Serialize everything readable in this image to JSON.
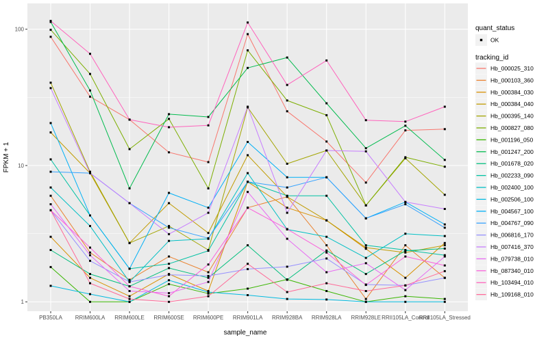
{
  "figure": {
    "background": "#FFFFFF",
    "panel_background": "#EBEBEB",
    "grid_color": "#FFFFFF",
    "tick_label_color": "#4D4D4D",
    "point_color": "#000000",
    "legend_key_fill": "#F2F2F2"
  },
  "legend": {
    "quant_status_title": "quant_status",
    "quant_status_items": [
      {
        "label": "OK",
        "shape": "black-point"
      }
    ],
    "tracking_id_title": "tracking_id"
  },
  "chart_data": {
    "type": "line",
    "title": "",
    "xlabel": "sample_name",
    "ylabel": "FPKM + 1",
    "y_scale": "log10",
    "y_ticks": [
      1,
      10,
      100
    ],
    "y_minor_gridlines": [
      3.162,
      31.62
    ],
    "ylim": [
      0.85,
      150
    ],
    "grid": "on",
    "legend_position": "right",
    "point_shape": "small-black-square",
    "categories": [
      "PB350LA",
      "RRIM600LA",
      "RRIM600LE",
      "RRIM600SE",
      "RRIM600PE",
      "RRIM901LA",
      "RRIM928BA",
      "RRIM928LA",
      "RRIM928LE",
      "RRII105LA_Control",
      "RRII105LA_Stressed"
    ],
    "series": [
      {
        "name": "Hb_000025_310",
        "color": "#F8766D",
        "values": [
          88,
          32,
          21.7,
          12.5,
          10.6,
          92,
          25,
          15,
          7.5,
          18.1,
          18.5
        ]
      },
      {
        "name": "Hb_000103_360",
        "color": "#EA8331",
        "values": [
          6.0,
          2.3,
          1.45,
          2.15,
          1.65,
          4.9,
          5.9,
          2.6,
          1.05,
          2.6,
          1.5
        ]
      },
      {
        "name": "Hb_000384_030",
        "color": "#D89000",
        "values": [
          3.0,
          1.5,
          1.1,
          1.6,
          1.2,
          7.6,
          4.9,
          3.96,
          2.45,
          1.5,
          2.7
        ]
      },
      {
        "name": "Hb_000384_040",
        "color": "#C09B00",
        "values": [
          17.5,
          8.8,
          2.7,
          5.3,
          3.2,
          11.9,
          5.9,
          3.96,
          2.5,
          2.3,
          2.6
        ]
      },
      {
        "name": "Hb_000395_140",
        "color": "#A3A500",
        "values": [
          40.5,
          9.0,
          2.7,
          3.6,
          2.4,
          26.7,
          10.3,
          12.9,
          5.1,
          11.3,
          6.1
        ]
      },
      {
        "name": "Hb_000827_080",
        "color": "#7CAE00",
        "values": [
          99,
          47,
          13.2,
          22,
          6.8,
          70,
          30,
          23.4,
          5.1,
          11.5,
          9.8
        ]
      },
      {
        "name": "Hb_001196_050",
        "color": "#39B600",
        "values": [
          1.8,
          1.0,
          1.0,
          1.35,
          1.15,
          1.25,
          1.46,
          1.2,
          1.0,
          1.1,
          1.05
        ]
      },
      {
        "name": "Hb_001247_200",
        "color": "#00BB4E",
        "values": [
          113,
          35.5,
          6.8,
          23.8,
          22.7,
          52,
          62,
          28.6,
          13.4,
          19.6,
          11.0
        ]
      },
      {
        "name": "Hb_001678_020",
        "color": "#00BF7D",
        "values": [
          2.4,
          1.6,
          1.3,
          1.77,
          1.5,
          2.6,
          1.45,
          2.38,
          1.6,
          2.37,
          2.46
        ]
      },
      {
        "name": "Hb_002233_090",
        "color": "#00C1A3",
        "values": [
          11.1,
          4.3,
          1.75,
          1.9,
          2.37,
          7.6,
          6.0,
          6.0,
          2.6,
          2.4,
          2.2
        ]
      },
      {
        "name": "Hb_002400_100",
        "color": "#00BFC4",
        "values": [
          6.9,
          3.6,
          1.4,
          2.8,
          2.9,
          8.8,
          3.4,
          3.0,
          2.1,
          3.16,
          3.04
        ]
      },
      {
        "name": "Hb_002506_100",
        "color": "#00BAE0",
        "values": [
          1.31,
          1.14,
          1.0,
          1.44,
          1.18,
          1.12,
          1.05,
          1.04,
          1.0,
          1.0,
          1.0
        ]
      },
      {
        "name": "Hb_004567_100",
        "color": "#00B0F6",
        "values": [
          20.5,
          4.3,
          1.75,
          6.3,
          4.9,
          14.9,
          8.2,
          8.2,
          4.1,
          5.4,
          3.7
        ]
      },
      {
        "name": "Hb_004767_090",
        "color": "#35A2FF",
        "values": [
          9.0,
          8.8,
          5.3,
          3.5,
          2.93,
          7.6,
          6.9,
          8.2,
          4.1,
          5.2,
          3.5
        ]
      },
      {
        "name": "Hb_006816_170",
        "color": "#9590FF",
        "values": [
          4.7,
          2.0,
          1.4,
          1.58,
          1.55,
          1.74,
          1.81,
          2.08,
          1.34,
          1.32,
          1.5
        ]
      },
      {
        "name": "Hb_007416_370",
        "color": "#C77CFF",
        "values": [
          37,
          8.8,
          5.3,
          3.14,
          4.5,
          27,
          4.5,
          12.9,
          12.7,
          5.4,
          4.8
        ]
      },
      {
        "name": "Hb_079738_010",
        "color": "#E76BF3",
        "values": [
          5.2,
          2.2,
          1.2,
          1.16,
          1.4,
          6.4,
          2.9,
          1.65,
          1.92,
          1.22,
          2.15
        ]
      },
      {
        "name": "Hb_087340_010",
        "color": "#FA62DB",
        "values": [
          4.7,
          2.5,
          1.3,
          1.1,
          1.88,
          4.9,
          3.42,
          2.3,
          1.33,
          2.15,
          1.85
        ]
      },
      {
        "name": "Hb_103494_010",
        "color": "#FF62BC",
        "values": [
          115,
          66,
          21.7,
          19.1,
          19.7,
          112,
          39,
          59,
          21.5,
          21,
          27
        ]
      },
      {
        "name": "Hb_109168_010",
        "color": "#FF6A98",
        "values": [
          4.7,
          1.37,
          1.05,
          1.0,
          1.1,
          1.9,
          1.18,
          1.37,
          1.2,
          1.32,
          1.68
        ]
      }
    ]
  }
}
